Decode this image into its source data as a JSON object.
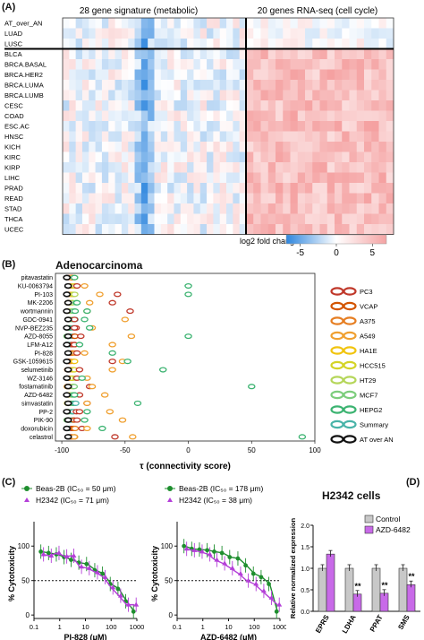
{
  "panel_a": {
    "label": "(A)",
    "section_left": "28 gene signature (metabolic)",
    "section_right": "20 genes RNA-seq (cell cycle)",
    "row_labels": [
      "AT_over_AN",
      "LUAD",
      "LUSC",
      "BLCA",
      "BRCA.BASAL",
      "BRCA.HER2",
      "BRCA.LUMA",
      "BRCA.LUMB",
      "CESC",
      "COAD",
      "ESC.AC",
      "HNSC",
      "KICH",
      "KIRC",
      "KIRP",
      "LIHC",
      "PRAD",
      "READ",
      "STAD",
      "THCA",
      "UCEC"
    ],
    "colorbar_title": "log2 fold change",
    "colorbar_ticks": [
      "-5",
      "0",
      "5"
    ],
    "colors": {
      "neg": "#2e86de",
      "pos": "#f4a3a3"
    }
  },
  "panel_b": {
    "label": "(B)",
    "title": "Adenocarcinoma",
    "drugs": [
      "pitavastatin",
      "KU-0063794",
      "PI-103",
      "MK-2206",
      "wortmannin",
      "GDC-0941",
      "NVP-BEZ235",
      "AZD-8055",
      "LFM-A12",
      "PI-828",
      "GSK-1059615",
      "selumetinib",
      "WZ-3146",
      "fostamatinib",
      "AZD-6482",
      "simvastatin",
      "PP-2",
      "PIK-90",
      "doxorubicin",
      "celastrol"
    ],
    "xticks": [
      "-100",
      "-50",
      "0",
      "50",
      "100"
    ],
    "xlabel": "τ (connectivity score)",
    "legend": [
      {
        "name": "PC3",
        "color": "#c0392b"
      },
      {
        "name": "VCAP",
        "color": "#d35400"
      },
      {
        "name": "A375",
        "color": "#e67e22"
      },
      {
        "name": "A549",
        "color": "#f0a030"
      },
      {
        "name": "HA1E",
        "color": "#f1c40f"
      },
      {
        "name": "HCC515",
        "color": "#d4d427"
      },
      {
        "name": "HT29",
        "color": "#b5d65a"
      },
      {
        "name": "MCF7",
        "color": "#7ccd7c"
      },
      {
        "name": "HEPG2",
        "color": "#3cb371"
      },
      {
        "name": "Summary",
        "color": "#48b3a8"
      },
      {
        "name": "AT over AN",
        "color": "#111111"
      }
    ]
  },
  "panel_c": {
    "label": "(C)",
    "left": {
      "legend1": "Beas-2B (IC₅₀ = 50 μm)",
      "legend2": "H2342 (IC₅₀ = 71 μm)",
      "xlabel": "PI-828 (μM)"
    },
    "right": {
      "legend1": "Beas-2B (IC₅₀ = 178 μm)",
      "legend2": "H2342 (IC₅₀ = 38 μm)",
      "xlabel": "AZD-6482 (μM)"
    },
    "ylabel": "% Cytotoxicity",
    "yticks": [
      "0",
      "50",
      "100"
    ],
    "xticks": [
      "0.1",
      "1",
      "10",
      "100",
      "1000"
    ],
    "colors": {
      "green": "#1e8e2e",
      "purple": "#b43fd8"
    }
  },
  "panel_d": {
    "label": "(D)",
    "title": "H2342 cells",
    "ylabel": "Relative normalized expression",
    "yticks": [
      "0.0",
      "0.5",
      "1.0",
      "1.5",
      "2.0"
    ],
    "categories": [
      "EPRS",
      "LDHA",
      "PPAT",
      "SMS"
    ],
    "legend": [
      "Control",
      "AZD-6482"
    ],
    "sig": [
      "",
      "**",
      "**",
      "**"
    ],
    "colors": {
      "control": "#c8c8c8",
      "treated": "#c86ae8"
    }
  },
  "chart_data": [
    {
      "type": "heatmap",
      "rows": [
        "AT_over_AN",
        "LUAD",
        "LUSC",
        "BLCA",
        "BRCA.BASAL",
        "BRCA.HER2",
        "BRCA.LUMA",
        "BRCA.LUMB",
        "CESC",
        "COAD",
        "ESC.AC",
        "HNSC",
        "KICH",
        "KIRC",
        "KIRP",
        "LIHC",
        "PRAD",
        "READ",
        "STAD",
        "THCA",
        "UCEC"
      ],
      "column_groups": [
        "28 gene signature (metabolic)",
        "20 genes RNA-seq (cell cycle)"
      ],
      "colorbar": {
        "title": "log2 fold change",
        "range": [
          -7,
          7
        ]
      }
    },
    {
      "type": "scatter",
      "title": "Adenocarcinoma",
      "xlabel": "τ (connectivity score)",
      "xlim": [
        -105,
        100
      ],
      "categories": [
        "pitavastatin",
        "KU-0063794",
        "PI-103",
        "MK-2206",
        "wortmannin",
        "GDC-0941",
        "NVP-BEZ235",
        "AZD-8055",
        "LFM-A12",
        "PI-828",
        "GSK-1059615",
        "selumetinib",
        "WZ-3146",
        "fostamatinib",
        "AZD-6482",
        "simvastatin",
        "PP-2",
        "PIK-90",
        "doxorubicin",
        "celastrol"
      ],
      "series": [
        {
          "name": "AT over AN",
          "values": [
            -96,
            -95,
            -96,
            -95,
            -96,
            -95,
            -96,
            -95,
            -96,
            -95,
            -96,
            -95,
            -96,
            -95,
            -96,
            -95,
            -96,
            -95,
            -96,
            -95
          ]
        },
        {
          "name": "PC3",
          "values": [
            -92,
            -88,
            -56,
            -60,
            -46,
            -90,
            -90,
            -85,
            -90,
            -88,
            -60,
            -86,
            -88,
            -78,
            -86,
            -80,
            -86,
            -88,
            -84,
            -58
          ]
        },
        {
          "name": "A549",
          "values": [
            -93,
            -82,
            -70,
            -78,
            -80,
            -50,
            -76,
            -45,
            -60,
            -82,
            -52,
            -60,
            -80,
            -76,
            -66,
            -80,
            -62,
            -52,
            -80,
            -44
          ]
        },
        {
          "name": "HEPG2",
          "values": [
            -90,
            0,
            0,
            -88,
            -80,
            -82,
            -78,
            0,
            -86,
            -60,
            -48,
            -20,
            -84,
            50,
            -90,
            -40,
            -80,
            -82,
            -68,
            90
          ]
        }
      ]
    },
    {
      "type": "line",
      "xlabel": "PI-828 (μM)",
      "ylabel": "% Cytotoxicity",
      "x": [
        0.2,
        0.4,
        0.8,
        1.6,
        3,
        6,
        12,
        25,
        50,
        100,
        200,
        400,
        800
      ],
      "series": [
        {
          "name": "Beas-2B (IC₅₀ = 50 μm)",
          "values": [
            92,
            90,
            88,
            84,
            80,
            76,
            74,
            65,
            60,
            45,
            38,
            20,
            5
          ]
        },
        {
          "name": "H2342 (IC₅₀ = 71 μm)",
          "values": [
            88,
            86,
            90,
            85,
            86,
            70,
            68,
            62,
            55,
            40,
            28,
            15,
            15
          ]
        }
      ],
      "ylim": [
        -5,
        125
      ]
    },
    {
      "type": "line",
      "xlabel": "AZD-6482 (μM)",
      "ylabel": "% Cytotoxicity",
      "x": [
        0.2,
        0.4,
        0.8,
        1.6,
        3,
        6,
        12,
        25,
        50,
        100,
        200,
        400,
        800
      ],
      "series": [
        {
          "name": "Beas-2B (IC₅₀ = 178 μm)",
          "values": [
            100,
            96,
            95,
            94,
            92,
            90,
            84,
            82,
            72,
            60,
            55,
            45,
            5
          ]
        },
        {
          "name": "H2342 (IC₅₀ = 38 μm)",
          "values": [
            96,
            94,
            92,
            88,
            80,
            75,
            68,
            60,
            50,
            45,
            35,
            25,
            15
          ]
        }
      ],
      "ylim": [
        -5,
        125
      ]
    },
    {
      "type": "bar",
      "title": "H2342 cells",
      "ylabel": "Relative normalized expression",
      "categories": [
        "EPRS",
        "LDHA",
        "PPAT",
        "SMS"
      ],
      "series": [
        {
          "name": "Control",
          "values": [
            1.0,
            1.0,
            1.0,
            1.0
          ]
        },
        {
          "name": "AZD-6482",
          "values": [
            1.33,
            0.4,
            0.42,
            0.62
          ]
        }
      ],
      "ylim": [
        0,
        2.0
      ]
    }
  ]
}
